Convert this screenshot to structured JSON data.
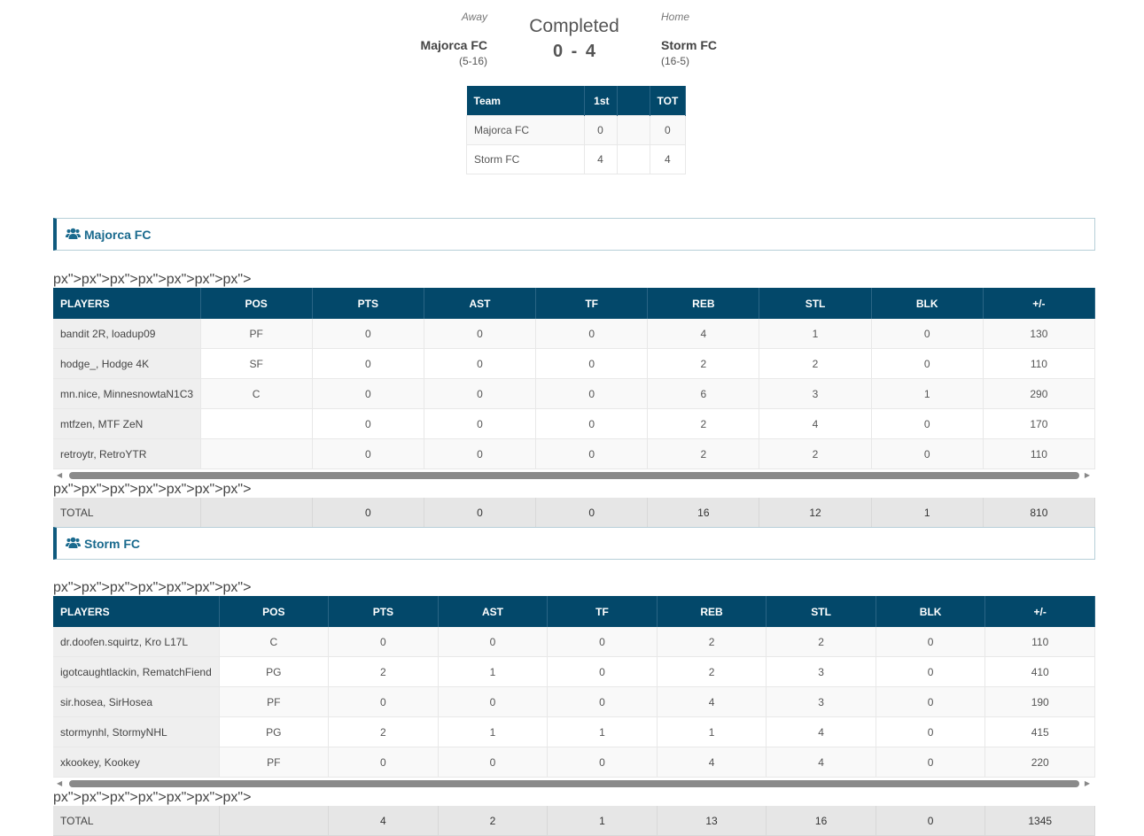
{
  "game": {
    "status": "Completed",
    "score": "0 - 4",
    "away": {
      "label": "Away",
      "name": "Majorca FC",
      "record": "(5-16)"
    },
    "home": {
      "label": "Home",
      "name": "Storm FC",
      "record": "(16-5)"
    }
  },
  "linescore": {
    "headers": [
      "Team",
      "1st",
      "",
      "TOT"
    ],
    "rows": [
      [
        "Majorca FC",
        "0",
        "",
        "0"
      ],
      [
        "Storm FC",
        "4",
        "",
        "4"
      ]
    ]
  },
  "colors": {
    "header": "#03486a",
    "accent": "#1a6a8e"
  },
  "columns": [
    "PLAYERS",
    "POS",
    "PTS",
    "AST",
    "TF",
    "REB",
    "STL",
    "BLK",
    "+/-"
  ],
  "teams": [
    {
      "name": "Majorca FC",
      "icon": "users-icon",
      "rows": [
        [
          "bandit 2R, loadup09",
          "PF",
          "0",
          "0",
          "0",
          "4",
          "1",
          "0",
          "130"
        ],
        [
          "hodge_, Hodge 4K",
          "SF",
          "0",
          "0",
          "0",
          "2",
          "2",
          "0",
          "110"
        ],
        [
          "mn.nice, MinnesnowtaN1C3",
          "C",
          "0",
          "0",
          "0",
          "6",
          "3",
          "1",
          "290"
        ],
        [
          "mtfzen, MTF ZeN",
          "",
          "0",
          "0",
          "0",
          "2",
          "4",
          "0",
          "170"
        ],
        [
          "retroytr, RetroYTR",
          "",
          "0",
          "0",
          "0",
          "2",
          "2",
          "0",
          "110"
        ]
      ],
      "total": [
        "TOTAL",
        "",
        "0",
        "0",
        "0",
        "16",
        "12",
        "1",
        "810"
      ]
    },
    {
      "name": "Storm FC",
      "icon": "users-icon",
      "rows": [
        [
          "dr.doofen.squirtz, Kro L17L",
          "C",
          "0",
          "0",
          "0",
          "2",
          "2",
          "0",
          "110"
        ],
        [
          "igotcaughtlackin, RematchFiend",
          "PG",
          "2",
          "1",
          "0",
          "2",
          "3",
          "0",
          "410"
        ],
        [
          "sir.hosea, SirHosea",
          "PF",
          "0",
          "0",
          "0",
          "4",
          "3",
          "0",
          "190"
        ],
        [
          "stormynhl, StormyNHL",
          "PG",
          "2",
          "1",
          "1",
          "1",
          "4",
          "0",
          "415"
        ],
        [
          "xkookey, Kookey",
          "PF",
          "0",
          "0",
          "0",
          "4",
          "4",
          "0",
          "220"
        ]
      ],
      "total": [
        "TOTAL",
        "",
        "4",
        "2",
        "1",
        "13",
        "16",
        "0",
        "1345"
      ]
    }
  ]
}
